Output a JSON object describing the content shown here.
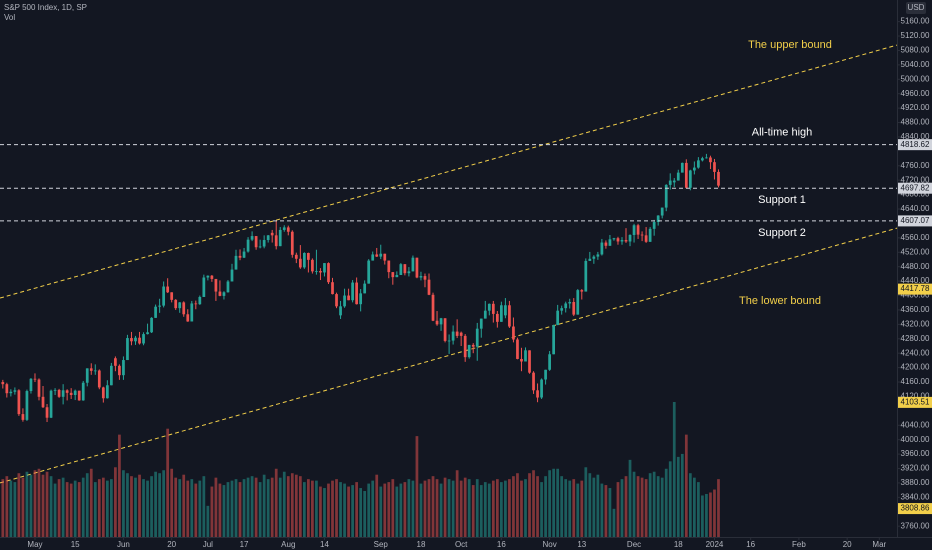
{
  "chart_data": {
    "type": "candlestick",
    "title": "S&P 500 Index, 1D, SP",
    "volume_label": "Vol",
    "currency": "USD",
    "up_color": "#26a69a",
    "down_color": "#ef5350",
    "xlim": [
      -8.7,
      214.4
    ],
    "ylim": [
      3730,
      5220
    ],
    "xticks": [
      {
        "value": 0,
        "label": "May"
      },
      {
        "value": 10,
        "label": "15"
      },
      {
        "value": 22,
        "label": "Jun"
      },
      {
        "value": 34,
        "label": "20"
      },
      {
        "value": 43,
        "label": "Jul"
      },
      {
        "value": 52,
        "label": "17"
      },
      {
        "value": 63,
        "label": "Aug"
      },
      {
        "value": 72,
        "label": "14"
      },
      {
        "value": 86,
        "label": "Sep"
      },
      {
        "value": 96,
        "label": "18"
      },
      {
        "value": 106,
        "label": "Oct"
      },
      {
        "value": 116,
        "label": "16"
      },
      {
        "value": 128,
        "label": "Nov"
      },
      {
        "value": 136,
        "label": "13"
      },
      {
        "value": 149,
        "label": "Dec"
      },
      {
        "value": 160,
        "label": "18"
      },
      {
        "value": 169,
        "label": "2024"
      },
      {
        "value": 178,
        "label": "16"
      },
      {
        "value": 190,
        "label": "Feb"
      },
      {
        "value": 202,
        "label": "20"
      },
      {
        "value": 210,
        "label": "Mar"
      }
    ],
    "yticks": [
      {
        "value": 5160,
        "label": "5160.00"
      },
      {
        "value": 5120,
        "label": "5120.00"
      },
      {
        "value": 5080,
        "label": "5080.00"
      },
      {
        "value": 5040,
        "label": "5040.00"
      },
      {
        "value": 5000,
        "label": "5000.00"
      },
      {
        "value": 4960,
        "label": "4960.00"
      },
      {
        "value": 4920,
        "label": "4920.00"
      },
      {
        "value": 4880,
        "label": "4880.00"
      },
      {
        "value": 4840,
        "label": "4840.00"
      },
      {
        "value": 4760,
        "label": "4760.00"
      },
      {
        "value": 4720,
        "label": "4720.00"
      },
      {
        "value": 4680,
        "label": "4680.00"
      },
      {
        "value": 4640,
        "label": "4640.00"
      },
      {
        "value": 4560,
        "label": "4560.00"
      },
      {
        "value": 4520,
        "label": "4520.00"
      },
      {
        "value": 4480,
        "label": "4480.00"
      },
      {
        "value": 4440,
        "label": "4440.00"
      },
      {
        "value": 4400,
        "label": "4400.00"
      },
      {
        "value": 4360,
        "label": "4360.00"
      },
      {
        "value": 4320,
        "label": "4320.00"
      },
      {
        "value": 4280,
        "label": "4280.00"
      },
      {
        "value": 4240,
        "label": "4240.00"
      },
      {
        "value": 4200,
        "label": "4200.00"
      },
      {
        "value": 4160,
        "label": "4160.00"
      },
      {
        "value": 4120,
        "label": "4120.00"
      },
      {
        "value": 4040,
        "label": "4040.00"
      },
      {
        "value": 4000,
        "label": "4000.00"
      },
      {
        "value": 3960,
        "label": "3960.00"
      },
      {
        "value": 3920,
        "label": "3920.00"
      },
      {
        "value": 3880,
        "label": "3880.00"
      },
      {
        "value": 3840,
        "label": "3840.00"
      },
      {
        "value": 3760,
        "label": "3760.00"
      }
    ],
    "levels": [
      {
        "label": "All-time high",
        "value": 4818.62
      },
      {
        "label": "Support 1",
        "value": 4697.82
      },
      {
        "label": "Support 2",
        "value": 4607.07
      }
    ],
    "level_color": "#d1d4dc",
    "channels": [
      {
        "label": "The upper bound",
        "x": [
          -8.7,
          214.4
        ],
        "y": [
          4393,
          5095
        ]
      },
      {
        "label": "The lower bound",
        "x": [
          -8.7,
          214.4
        ],
        "y": [
          3880,
          4587
        ]
      }
    ],
    "channel_color": "#f2cf4a",
    "price_markers": [
      4417.78,
      4103.51,
      3808.86
    ],
    "x": [
      -8,
      -7,
      -6,
      -5,
      -4,
      -3,
      -2,
      -1,
      0,
      1,
      2,
      3,
      4,
      5,
      6,
      7,
      8,
      9,
      10,
      11,
      12,
      13,
      14,
      15,
      16,
      17,
      18,
      19,
      20,
      21,
      22,
      23,
      24,
      25,
      26,
      27,
      28,
      29,
      30,
      31,
      32,
      33,
      34,
      35,
      36,
      37,
      38,
      39,
      40,
      41,
      42,
      43,
      44,
      45,
      46,
      47,
      48,
      49,
      50,
      51,
      52,
      53,
      54,
      55,
      56,
      57,
      58,
      59,
      60,
      61,
      62,
      63,
      64,
      65,
      66,
      67,
      68,
      69,
      70,
      71,
      72,
      73,
      74,
      75,
      76,
      77,
      78,
      79,
      80,
      81,
      82,
      83,
      84,
      85,
      86,
      87,
      88,
      89,
      90,
      91,
      92,
      93,
      94,
      95,
      96,
      97,
      98,
      99,
      100,
      101,
      102,
      103,
      104,
      105,
      106,
      107,
      108,
      109,
      110,
      111,
      112,
      113,
      114,
      115,
      116,
      117,
      118,
      119,
      120,
      121,
      122,
      123,
      124,
      125,
      126,
      127,
      128,
      129,
      130,
      131,
      132,
      133,
      134,
      135,
      136,
      137,
      138,
      139,
      140,
      141,
      142,
      143,
      144,
      145,
      146,
      147,
      148,
      149,
      150,
      151,
      152,
      153,
      154,
      155,
      156,
      157,
      158,
      159,
      160,
      161,
      162,
      163,
      164,
      165,
      166,
      167,
      168,
      169,
      170
    ],
    "open": [
      4160,
      4154,
      4129,
      4133,
      4137,
      4071,
      4055,
      4135,
      4169,
      4167,
      4119,
      4090,
      4061,
      4136,
      4138,
      4119,
      4137,
      4130,
      4124,
      4136,
      4109,
      4158,
      4198,
      4191,
      4192,
      4145,
      4115,
      4151,
      4226,
      4205,
      4179,
      4221,
      4282,
      4273,
      4283,
      4267,
      4293,
      4298,
      4338,
      4369,
      4372,
      4425,
      4409,
      4388,
      4365,
      4381,
      4348,
      4328,
      4378,
      4376,
      4396,
      4450,
      4455,
      4446,
      4411,
      4399,
      4409,
      4439,
      4472,
      4510,
      4505,
      4522,
      4555,
      4565,
      4534,
      4536,
      4554,
      4574,
      4567,
      4537,
      4582,
      4589,
      4577,
      4513,
      4502,
      4478,
      4518,
      4499,
      4467,
      4468,
      4464,
      4490,
      4437,
      4404,
      4345,
      4370,
      4400,
      4387,
      4436,
      4376,
      4406,
      4433,
      4497,
      4514,
      4508,
      4516,
      4497,
      4465,
      4451,
      4457,
      4487,
      4462,
      4467,
      4505,
      4450,
      4454,
      4444,
      4402,
      4330,
      4320,
      4337,
      4274,
      4275,
      4300,
      4297,
      4288,
      4229,
      4263,
      4258,
      4308,
      4336,
      4358,
      4377,
      4349,
      4327,
      4345,
      4373,
      4314,
      4278,
      4224,
      4217,
      4248,
      4186,
      4137,
      4117,
      4167,
      4194,
      4237,
      4318,
      4358,
      4365,
      4378,
      4382,
      4347,
      4415,
      4411,
      4496,
      4502,
      4508,
      4514,
      4547,
      4538,
      4556,
      4559,
      4550,
      4554,
      4550,
      4568,
      4595,
      4569,
      4567,
      4549,
      4585,
      4604,
      4622,
      4644,
      4707,
      4714,
      4719,
      4741,
      4768,
      4699,
      4747,
      4755,
      4775,
      4781,
      4783,
      4770,
      4743
    ],
    "high": [
      4166,
      4158,
      4140,
      4145,
      4140,
      4087,
      4139,
      4171,
      4184,
      4170,
      4149,
      4099,
      4139,
      4143,
      4141,
      4154,
      4140,
      4143,
      4139,
      4136,
      4163,
      4198,
      4212,
      4209,
      4195,
      4147,
      4165,
      4213,
      4231,
      4209,
      4231,
      4291,
      4299,
      4288,
      4299,
      4298,
      4322,
      4340,
      4375,
      4391,
      4439,
      4448,
      4409,
      4390,
      4382,
      4384,
      4362,
      4385,
      4386,
      4400,
      4458,
      4456,
      4457,
      4446,
      4442,
      4412,
      4443,
      4488,
      4527,
      4528,
      4532,
      4562,
      4578,
      4565,
      4555,
      4567,
      4568,
      4582,
      4607,
      4590,
      4595,
      4594,
      4581,
      4519,
      4540,
      4520,
      4519,
      4503,
      4527,
      4476,
      4490,
      4492,
      4449,
      4408,
      4385,
      4419,
      4419,
      4443,
      4450,
      4418,
      4442,
      4501,
      4522,
      4532,
      4541,
      4516,
      4497,
      4465,
      4467,
      4490,
      4487,
      4479,
      4511,
      4505,
      4466,
      4461,
      4461,
      4408,
      4357,
      4338,
      4337,
      4292,
      4317,
      4334,
      4300,
      4293,
      4263,
      4268,
      4324,
      4336,
      4385,
      4378,
      4385,
      4357,
      4383,
      4393,
      4385,
      4339,
      4283,
      4255,
      4256,
      4248,
      4190,
      4156,
      4170,
      4194,
      4246,
      4319,
      4374,
      4372,
      4383,
      4391,
      4393,
      4418,
      4418,
      4503,
      4521,
      4512,
      4521,
      4557,
      4553,
      4568,
      4560,
      4563,
      4562,
      4587,
      4570,
      4599,
      4599,
      4578,
      4590,
      4590,
      4610,
      4623,
      4644,
      4709,
      4739,
      4726,
      4749,
      4769,
      4778,
      4749,
      4772,
      4784,
      4785,
      4793,
      4788,
      4779,
      4750
    ],
    "low": [
      4142,
      4117,
      4120,
      4125,
      4066,
      4050,
      4052,
      4128,
      4160,
      4109,
      4088,
      4049,
      4060,
      4124,
      4116,
      4098,
      4109,
      4113,
      4110,
      4108,
      4108,
      4148,
      4180,
      4180,
      4140,
      4103,
      4114,
      4151,
      4190,
      4166,
      4166,
      4221,
      4262,
      4263,
      4264,
      4262,
      4292,
      4296,
      4338,
      4352,
      4367,
      4407,
      4381,
      4360,
      4352,
      4341,
      4327,
      4328,
      4362,
      4374,
      4396,
      4442,
      4438,
      4385,
      4398,
      4389,
      4408,
      4439,
      4472,
      4498,
      4504,
      4519,
      4551,
      4527,
      4531,
      4531,
      4547,
      4547,
      4528,
      4537,
      4577,
      4567,
      4505,
      4490,
      4474,
      4474,
      4464,
      4461,
      4458,
      4443,
      4453,
      4432,
      4403,
      4365,
      4335,
      4366,
      4387,
      4381,
      4375,
      4356,
      4406,
      4433,
      4497,
      4507,
      4501,
      4486,
      4448,
      4430,
      4451,
      4457,
      4456,
      4453,
      4467,
      4448,
      4442,
      4423,
      4401,
      4329,
      4316,
      4302,
      4270,
      4238,
      4264,
      4282,
      4260,
      4216,
      4225,
      4240,
      4219,
      4283,
      4336,
      4345,
      4325,
      4311,
      4327,
      4337,
      4310,
      4270,
      4223,
      4190,
      4217,
      4183,
      4127,
      4104,
      4113,
      4153,
      4191,
      4237,
      4318,
      4347,
      4353,
      4364,
      4343,
      4347,
      4389,
      4411,
      4496,
      4488,
      4499,
      4511,
      4530,
      4538,
      4552,
      4541,
      4541,
      4546,
      4537,
      4547,
      4557,
      4551,
      4546,
      4549,
      4566,
      4594,
      4614,
      4634,
      4694,
      4701,
      4719,
      4743,
      4697,
      4692,
      4736,
      4752,
      4772,
      4780,
      4751,
      4722,
      4700
    ],
    "close": [
      4154,
      4129,
      4133,
      4137,
      4071,
      4055,
      4135,
      4169,
      4167,
      4119,
      4090,
      4061,
      4136,
      4138,
      4119,
      4137,
      4130,
      4124,
      4136,
      4109,
      4158,
      4198,
      4191,
      4192,
      4145,
      4115,
      4151,
      4205,
      4205,
      4179,
      4221,
      4282,
      4273,
      4283,
      4267,
      4293,
      4298,
      4338,
      4369,
      4372,
      4425,
      4409,
      4388,
      4365,
      4381,
      4348,
      4328,
      4378,
      4376,
      4396,
      4450,
      4455,
      4446,
      4411,
      4399,
      4409,
      4439,
      4472,
      4510,
      4505,
      4522,
      4555,
      4565,
      4534,
      4536,
      4554,
      4567,
      4567,
      4537,
      4582,
      4589,
      4577,
      4513,
      4502,
      4478,
      4518,
      4499,
      4467,
      4468,
      4464,
      4490,
      4437,
      4404,
      4370,
      4370,
      4400,
      4387,
      4436,
      4376,
      4406,
      4433,
      4497,
      4514,
      4508,
      4516,
      4497,
      4465,
      4451,
      4457,
      4487,
      4462,
      4467,
      4505,
      4450,
      4454,
      4444,
      4402,
      4330,
      4320,
      4337,
      4274,
      4275,
      4300,
      4288,
      4288,
      4229,
      4263,
      4258,
      4308,
      4336,
      4358,
      4377,
      4349,
      4327,
      4373,
      4373,
      4314,
      4278,
      4224,
      4217,
      4248,
      4186,
      4137,
      4117,
      4167,
      4194,
      4237,
      4318,
      4358,
      4365,
      4378,
      4382,
      4347,
      4415,
      4411,
      4496,
      4502,
      4508,
      4514,
      4547,
      4538,
      4556,
      4559,
      4550,
      4554,
      4550,
      4568,
      4595,
      4569,
      4567,
      4549,
      4585,
      4604,
      4622,
      4644,
      4707,
      4719,
      4719,
      4741,
      4768,
      4699,
      4747,
      4755,
      4775,
      4781,
      4783,
      4770,
      4743,
      4705
    ],
    "volume": [
      3.9,
      4.1,
      3.8,
      3.7,
      4.3,
      4.0,
      4.4,
      4.2,
      4.5,
      4.6,
      4.2,
      4.4,
      4.1,
      3.6,
      3.9,
      4.0,
      3.7,
      3.6,
      3.8,
      3.7,
      4.0,
      4.3,
      4.6,
      3.7,
      3.9,
      4.0,
      3.8,
      3.9,
      4.7,
      6.9,
      4.5,
      4.3,
      4.1,
      4.0,
      4.2,
      3.9,
      3.8,
      4.1,
      4.4,
      4.3,
      4.5,
      7.3,
      4.6,
      4.0,
      3.9,
      4.2,
      3.8,
      3.9,
      3.6,
      3.8,
      4.1,
      2.1,
      3.4,
      4.0,
      3.6,
      3.5,
      3.7,
      3.8,
      3.9,
      3.7,
      3.9,
      4.0,
      4.1,
      4.0,
      3.7,
      4.2,
      3.9,
      4.0,
      4.6,
      4.0,
      4.4,
      4.1,
      4.3,
      4.2,
      4.1,
      3.7,
      3.9,
      3.8,
      3.8,
      3.4,
      3.3,
      3.6,
      3.8,
      3.9,
      3.7,
      3.6,
      3.4,
      3.5,
      3.7,
      3.3,
      3.1,
      3.6,
      3.8,
      4.2,
      3.4,
      3.6,
      3.7,
      3.9,
      3.4,
      3.6,
      3.7,
      3.9,
      3.8,
      6.8,
      3.6,
      3.8,
      3.9,
      4.1,
      3.9,
      3.6,
      4.0,
      3.9,
      3.8,
      4.5,
      3.8,
      4.0,
      3.9,
      3.5,
      3.9,
      3.5,
      3.7,
      3.6,
      3.8,
      3.9,
      3.7,
      3.8,
      3.9,
      4.1,
      4.3,
      3.8,
      3.9,
      4.3,
      4.5,
      4.1,
      3.7,
      4.1,
      4.5,
      4.6,
      4.6,
      4.1,
      3.9,
      3.8,
      3.9,
      3.6,
      3.8,
      4.7,
      4.3,
      4.0,
      4.2,
      3.6,
      3.5,
      3.3,
      1.9,
      3.7,
      3.9,
      4.1,
      5.2,
      4.4,
      4.1,
      4.0,
      3.9,
      4.3,
      4.4,
      4.1,
      4.0,
      4.6,
      5.1,
      9.1,
      5.4,
      5.6,
      6.9,
      4.3,
      4.0,
      3.7,
      2.8,
      2.9,
      3.0,
      3.2,
      3.9
    ]
  }
}
